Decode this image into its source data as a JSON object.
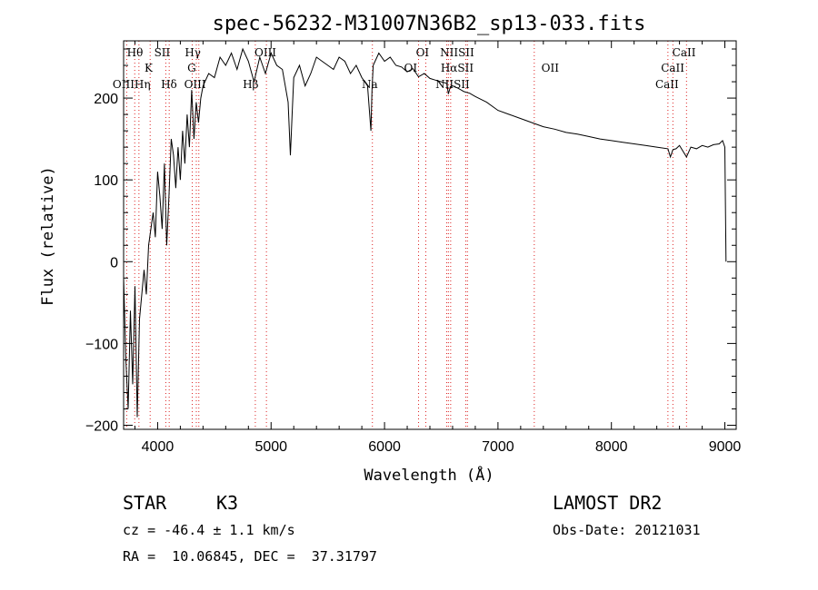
{
  "chart_data": {
    "type": "line",
    "title": "spec-56232-M31007N36B2_sp13-033.fits",
    "xlabel": "Wavelength (Å)",
    "ylabel": "Flux (relative)",
    "xlim": [
      3700,
      9100
    ],
    "ylim": [
      -205,
      270
    ],
    "xticks": [
      4000,
      5000,
      6000,
      7000,
      8000,
      9000
    ],
    "yticks": [
      -200,
      -100,
      0,
      100,
      200
    ],
    "grid": false,
    "spectrum": {
      "x": [
        3700,
        3720,
        3740,
        3760,
        3780,
        3800,
        3820,
        3840,
        3860,
        3880,
        3900,
        3920,
        3940,
        3960,
        3980,
        4000,
        4020,
        4040,
        4060,
        4080,
        4100,
        4120,
        4140,
        4160,
        4180,
        4200,
        4220,
        4240,
        4260,
        4280,
        4300,
        4320,
        4340,
        4360,
        4380,
        4400,
        4450,
        4500,
        4550,
        4600,
        4650,
        4700,
        4750,
        4800,
        4850,
        4900,
        4950,
        5000,
        5050,
        5100,
        5150,
        5170,
        5185,
        5200,
        5250,
        5300,
        5350,
        5400,
        5450,
        5500,
        5550,
        5600,
        5650,
        5700,
        5750,
        5800,
        5850,
        5880,
        5890,
        5900,
        5950,
        6000,
        6050,
        6100,
        6150,
        6200,
        6250,
        6300,
        6350,
        6400,
        6450,
        6500,
        6550,
        6563,
        6580,
        6600,
        6650,
        6700,
        6750,
        6800,
        6900,
        7000,
        7100,
        7200,
        7300,
        7400,
        7500,
        7600,
        7700,
        7800,
        7900,
        8000,
        8100,
        8200,
        8300,
        8400,
        8498,
        8520,
        8542,
        8570,
        8600,
        8662,
        8700,
        8750,
        8800,
        8850,
        8900,
        8950,
        8980,
        9000,
        9010
      ],
      "y": [
        -20,
        -120,
        -180,
        -60,
        -150,
        -30,
        -190,
        -70,
        -40,
        -10,
        -40,
        20,
        40,
        60,
        30,
        110,
        80,
        40,
        120,
        20,
        80,
        150,
        130,
        90,
        140,
        100,
        160,
        120,
        180,
        140,
        210,
        150,
        195,
        170,
        200,
        215,
        230,
        225,
        250,
        240,
        255,
        235,
        260,
        245,
        220,
        250,
        230,
        255,
        240,
        235,
        195,
        130,
        180,
        225,
        240,
        215,
        230,
        250,
        245,
        240,
        235,
        250,
        245,
        230,
        240,
        225,
        215,
        160,
        210,
        240,
        255,
        245,
        250,
        240,
        238,
        232,
        236,
        226,
        230,
        224,
        222,
        220,
        218,
        205,
        214,
        215,
        212,
        208,
        206,
        202,
        195,
        185,
        180,
        175,
        170,
        165,
        162,
        158,
        156,
        153,
        150,
        148,
        146,
        144,
        142,
        140,
        138,
        128,
        137,
        138,
        142,
        128,
        140,
        138,
        142,
        140,
        143,
        144,
        148,
        140,
        0
      ]
    },
    "line_markers": [
      {
        "label": "Hθ",
        "x": 3798
      },
      {
        "label": "OIII",
        "x": 3727
      },
      {
        "label": "Hη",
        "x": 3835
      },
      {
        "label": "K",
        "x": 3934
      },
      {
        "label": "SII",
        "x": 4072
      },
      {
        "label": "Hδ",
        "x": 4102
      },
      {
        "label": "Hγ",
        "x": 4341
      },
      {
        "label": "G",
        "x": 4305
      },
      {
        "label": "OIII",
        "x": 4363
      },
      {
        "label": "Hβ",
        "x": 4861
      },
      {
        "label": "OIII",
        "x": 4959
      },
      {
        "label": "Na",
        "x": 5893
      },
      {
        "label": "OI",
        "x": 6300
      },
      {
        "label": "OI",
        "x": 6364
      },
      {
        "label": "NII",
        "x": 6548
      },
      {
        "label": "Hα",
        "x": 6563
      },
      {
        "label": "NII",
        "x": 6583
      },
      {
        "label": "SII",
        "x": 6716
      },
      {
        "label": "SII",
        "x": 6731
      },
      {
        "label": "OII",
        "x": 7320
      },
      {
        "label": "CaII",
        "x": 8498
      },
      {
        "label": "CaII",
        "x": 8542
      },
      {
        "label": "CaII",
        "x": 8662
      }
    ],
    "line_labels": [
      {
        "text": "Hθ",
        "x": 3800,
        "row": 0
      },
      {
        "text": "SII",
        "x": 4040,
        "row": 0
      },
      {
        "text": "Hγ",
        "x": 4310,
        "row": 0
      },
      {
        "text": "OIII",
        "x": 4950,
        "row": 0
      },
      {
        "text": "OI",
        "x": 6335,
        "row": 0
      },
      {
        "text": "NIISII",
        "x": 6640,
        "row": 0
      },
      {
        "text": "CaII",
        "x": 8640,
        "row": 0
      },
      {
        "text": "K",
        "x": 3920,
        "row": 1
      },
      {
        "text": "G",
        "x": 4300,
        "row": 1
      },
      {
        "text": "OI",
        "x": 6230,
        "row": 1
      },
      {
        "text": "HαSII",
        "x": 6640,
        "row": 1
      },
      {
        "text": "OII",
        "x": 7460,
        "row": 1
      },
      {
        "text": "CaII",
        "x": 8540,
        "row": 1
      },
      {
        "text": "OIIIHη",
        "x": 3770,
        "row": 2
      },
      {
        "text": "Hδ",
        "x": 4100,
        "row": 2
      },
      {
        "text": "OIII",
        "x": 4330,
        "row": 2
      },
      {
        "text": "Hβ",
        "x": 4820,
        "row": 2
      },
      {
        "text": "Na",
        "x": 5870,
        "row": 2
      },
      {
        "text": "NIISII",
        "x": 6600,
        "row": 2
      },
      {
        "text": "CaII",
        "x": 8490,
        "row": 2
      }
    ]
  },
  "info": {
    "object_class": "STAR",
    "subclass": "K3",
    "survey": "LAMOST DR2",
    "velocity": "cz = -46.4 ± 1.1 km/s",
    "obs_date": "Obs-Date: 20121031",
    "coords": "RA =  10.06845, DEC =  37.31797"
  }
}
